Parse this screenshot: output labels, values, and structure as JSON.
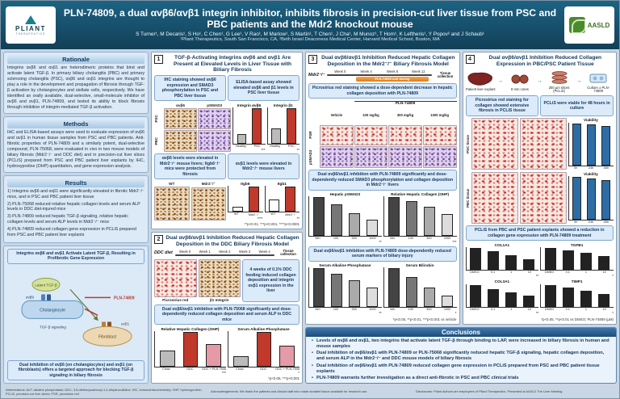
{
  "header": {
    "title": "PLN-74809, a dual αvβ6/αvβ1 integrin inhibitor, inhibits fibrosis in precision-cut liver tissue from PSC and PBC patients and the Mdr2 knockout mouse",
    "authors": "S Turner¹, M Decaris¹, S Ho¹, C Chen¹, G Lee¹, V Rao¹, M Marlow¹, S Martin¹, T Chen¹, J Cha¹, M Munoz¹, T Hom¹, K Leftheris¹, Y Popov² and J Schaub¹",
    "affiliations": "¹Pliant Therapeutics, South San Francisco, CA, ²Beth Israel Deaconess Medical Center, Harvard Medical School, Boston, MA",
    "pliant_logo": "PLIANT",
    "pliant_sub": "THERAPEUTICS",
    "aasld_logo": "AASLD"
  },
  "rationale": {
    "title": "Rationale",
    "body": "Integrins αvβ6 and αvβ1 are heterodimeric proteins that bind and activate latent TGF-β. In primary biliary cholangitis (PBC) and primary sclerosing cholangitis (PSC), αvβ6 and αvβ1 integrins are thought to play a role in the development and propagation of fibrosis through TGF-β activation by cholangiocytes and stellate cells, respectively. We have identified an orally available, dual-selective, small-molecule inhibitor of αvβ6 and αvβ1, PLN-74809, and tested its ability to block fibrosis through inhibition of integrin-mediated TGF-β activation."
  },
  "methods": {
    "title": "Methods",
    "body": "IHC and ELISA-based assays were used to evaluate expression of αvβ6 and αvβ1 in human tissue samples from PSC and PBC patients. Anti-fibrotic properties of PLN-74809 and a similarly potent, dual-selective compound, PLN-75068, were evaluated in vivo in two mouse models of biliary fibrosis (Mdr2⁻/⁻ and DDC diet) and in precision-cut liver slices (PCLiS) prepared from PSC and PBC patient liver explants by IHC, hydroxyproline (OHP) quantitation, and gene expression analysis."
  },
  "results": {
    "title": "Results",
    "items": [
      "1) Integrins αvβ6 and αvβ1 were significantly elevated in fibrotic Mdr2⁻/⁻ mice, and in PSC and PBC patient liver tissue",
      "2) PLN-75068 reduced relative hepatic collagen levels and serum ALP levels in DDC diet-injured mice",
      "3) PLN-74809 reduced hepatic TGF-β signaling, relative hepatic collagen levels and serum ALP levels in Mdr2⁻/⁻ mice",
      "4) PLN-74809 reduced collagen gene expression in PCLiS prepared from PSC and PBC patient liver explants"
    ]
  },
  "diagram": {
    "title": "Integrins αvβ6 and αvβ1 Activate Latent TGF-β, Resulting in Profibrotic Gene Expression",
    "caption": "Dual inhibition of αvβ6 (on cholangiocytes) and αvβ1 (on fibroblasts) offers a targeted approach for blocking TGF-β signaling in biliary fibrosis",
    "labels": {
      "latent": "Latent TGF-β",
      "b6": "αvβ6",
      "chol": "Cholangiocyte",
      "b1": "αvβ1",
      "fib": "Fibroblast",
      "drug": "PLN-74809",
      "signal": "TGF-β signaling"
    }
  },
  "panel1": {
    "num": "1",
    "title": "TGF-β-Activating Integrins αvβ6 and αvβ1 Are Present at Elevated Levels in Liver Tissue with Biliary Fibrosis",
    "box_ihc": "IHC staining showed αvβ6 expression and SMAD3 phosphorylation in PSC and PBC liver tissue",
    "box_elisa": "ELISA-based assay showed elevated αvβ6 and β1 levels in PSC liver tissue",
    "ihc_cols": [
      "αvβ6",
      "pSMAD3"
    ],
    "ihc_rows": [
      "PSC",
      "PBC"
    ],
    "chart_b6": {
      "title": "Integrin αvβ6",
      "categories": [
        "Healthy",
        "PSC"
      ],
      "values": [
        1,
        3.8
      ],
      "colors": [
        "#bbbbbb",
        "#c0392b"
      ],
      "sig": "***"
    },
    "chart_b1": {
      "title": "Integrin β1",
      "categories": [
        "Healthy",
        "PSC"
      ],
      "values": [
        1,
        2.3
      ],
      "colors": [
        "#bbbbbb",
        "#c0392b"
      ],
      "sig": "**"
    },
    "box_mouse_b6": "αvβ6 levels were elevated in Mdr2⁻/⁻ mouse livers; Itgb6⁻/⁻ mice were protected from fibrosis",
    "box_mouse_b1": "αvβ1 levels were elevated in Mdr2⁻/⁻ mouse livers",
    "mouse_labels": [
      "WT",
      "Mdr2⁻/⁻"
    ],
    "chart_itgb6": {
      "title": "Itgb6",
      "categories": [
        "WT",
        "Mdr2⁻/⁻"
      ],
      "values": [
        1,
        5.2
      ],
      "colors": [
        "#ffffff",
        "#c0392b"
      ],
      "sig": "****"
    },
    "chart_itgb1": {
      "title": "Itgb1",
      "categories": [
        "WT",
        "Mdr2⁻/⁻"
      ],
      "values": [
        1,
        2.1
      ],
      "colors": [
        "#ffffff",
        "#c0392b"
      ],
      "sig": "**"
    },
    "footnote": "**p<0.01, ***p<0.001, ****p<0.0001"
  },
  "panel2": {
    "num": "2",
    "title": "Dual αvβ6/αvβ1 Inhibition Reduced Hepatic Collagen Deposition in the DDC Biliary Fibrosis Model",
    "timeline_label": "DDC diet",
    "weeks": [
      "Week 0",
      "Week 1",
      "Week 2",
      "Week 3",
      "Week 4"
    ],
    "collection": "Tissue collection",
    "img_labels": [
      "Picrosirius red",
      "β1 Integrin"
    ],
    "box1": "4 weeks of 0.1% DDC feeding induced collagen deposition and integrin αvβ1 expression in the liver",
    "box2": "Dual αvβ6/αvβ1 inhibition with PLN-75068 significantly and dose-dependently reduced collagen deposition and serum ALP in DDC mice",
    "chart_ohp": {
      "title": "Relative Hepatic Collagen (OHP)",
      "categories": [
        "Chow",
        "DDC",
        "DDC + PLN-75068"
      ],
      "values": [
        1,
        2.2,
        1.4
      ],
      "colors": [
        "#bbbbbb",
        "#c0392b",
        "#e59aa8"
      ],
      "sig": "***"
    },
    "chart_alp": {
      "title": "Serum Alkaline Phosphatase",
      "categories": [
        "Chow",
        "DDC",
        "DDC + PLN-75068"
      ],
      "values": [
        120,
        420,
        250
      ],
      "colors": [
        "#bbbbbb",
        "#c0392b",
        "#e59aa8"
      ],
      "sig": "*"
    },
    "footnote": "*p<0.05, ***p<0.001"
  },
  "panel3": {
    "num": "3",
    "title": "Dual αvβ6/αvβ1 Inhibition Reduced Hepatic Collagen Deposition in the Mdr2⁻/⁻ Biliary Fibrosis Model",
    "timeline_label": "Mdr2⁻/⁻",
    "weeks": [
      "Week 0",
      "Week 4",
      "Week 8",
      "Week 12"
    ],
    "dosing_bar": "PLN-74809 oral dosing",
    "collection": "Tissue collection",
    "box1": "Picrosirius red staining showed a dose-dependent decrease in hepatic collagen deposition with PLN-74809",
    "group_header": "PLN-74809",
    "dose_labels": [
      "Vehicle",
      "100 mg/kg",
      "300 mg/kg",
      "1000 mg/kg"
    ],
    "row_labels": [
      "PSR",
      "pSMAD3"
    ],
    "box2": "Dual αvβ6/αvβ1 inhibition with PLN-74809 significantly and dose-dependently reduced SMAD3 phosphorylation and collagen deposition in Mdr2⁻/⁻ livers",
    "chart_psmad3": {
      "title": "Hepatic pSMAD3",
      "categories": [
        "Veh",
        "100",
        "300",
        "1000"
      ],
      "values": [
        1,
        0.82,
        0.6,
        0.42
      ],
      "colors": [
        "#444444",
        "#777777",
        "#aaaaaa",
        "#dddddd"
      ],
      "sig": "**"
    },
    "chart_ohp": {
      "title": "Relative Hepatic Collagen (OHP)",
      "categories": [
        "Veh",
        "100",
        "300",
        "1000"
      ],
      "values": [
        1,
        0.9,
        0.75,
        0.58
      ],
      "colors": [
        "#444444",
        "#777777",
        "#aaaaaa",
        "#dddddd"
      ],
      "sig": "***"
    },
    "box3": "Dual αvβ6/αvβ1 inhibition with PLN-74809 dose-dependently reduced serum markers of biliary injury",
    "chart_alp": {
      "title": "Serum Alkaline Phosphatase",
      "categories": [
        "Veh",
        "100",
        "300",
        "1000"
      ],
      "values": [
        420,
        360,
        290,
        210
      ],
      "colors": [
        "#444444",
        "#777777",
        "#aaaaaa",
        "#dddddd"
      ],
      "sig": "**"
    },
    "chart_bili": {
      "title": "Serum Bilirubin",
      "categories": [
        "Veh",
        "100",
        "300",
        "1000"
      ],
      "values": [
        8,
        6.2,
        4.1,
        2.3
      ],
      "colors": [
        "#444444",
        "#777777",
        "#aaaaaa",
        "#dddddd"
      ],
      "sig": "*"
    },
    "footnote": "*p<0.05, **p<0.01, ***p<0.001 vs vehicle"
  },
  "panel4": {
    "num": "4",
    "title": "Dual αvβ6/αvβ1 Inhibition Reduced Collagen Expression in PBC/PSC Patient Tissue",
    "workflow": [
      "Patient liver explant",
      "8 mm cores",
      "250 µm slices (PCLiS)",
      "Culture ± PLN-74809"
    ],
    "box1": "Picrosirius red staining for collagen showed extensive fibrosis in PCLiS tissue",
    "box2": "PCLiS were viable for 48 hours in culture",
    "tissue_rows": [
      "PSC tissue",
      "PBC tissue"
    ],
    "chart_viab_psc": {
      "title": "Viability",
      "categories": [
        "0h",
        "24h",
        "48h"
      ],
      "values": [
        100,
        97,
        94
      ],
      "colors": [
        "#2e6da4",
        "#2e6da4",
        "#2e6da4"
      ]
    },
    "chart_viab_pbc": {
      "title": "Viability",
      "categories": [
        "0h",
        "24h",
        "48h"
      ],
      "values": [
        100,
        96,
        92
      ],
      "colors": [
        "#2e6da4",
        "#2e6da4",
        "#2e6da4"
      ]
    },
    "box3": "PCLiS from PBC and PSC patient explants showed a reduction in collagen gene expression with PLN-74809 treatment",
    "gene_charts": [
      {
        "title": "COL1A1",
        "categories": [
          "DMSO",
          "0.1",
          "1",
          "10"
        ],
        "values": [
          1,
          0.85,
          0.66,
          0.48
        ],
        "colors": [
          "#222222",
          "#222222",
          "#222222",
          "#222222"
        ],
        "sig": "**"
      },
      {
        "title": "TGFB1",
        "categories": [
          "DMSO",
          "0.1",
          "1",
          "10"
        ],
        "values": [
          1,
          0.9,
          0.78,
          0.62
        ],
        "colors": [
          "#222222",
          "#222222",
          "#222222",
          "#222222"
        ],
        "sig": "*"
      },
      {
        "title": "COL3A1",
        "categories": [
          "DMSO",
          "0.1",
          "1",
          "10"
        ],
        "values": [
          1,
          0.8,
          0.64,
          0.5
        ],
        "colors": [
          "#222222",
          "#222222",
          "#222222",
          "#222222"
        ],
        "sig": "**"
      },
      {
        "title": "TIMP1",
        "categories": [
          "DMSO",
          "0.1",
          "1",
          "10"
        ],
        "values": [
          1,
          0.88,
          0.72,
          0.58
        ],
        "colors": [
          "#222222",
          "#222222",
          "#222222",
          "#222222"
        ],
        "sig": "*"
      }
    ],
    "footnote": "*p<0.05, **p<0.01 vs DMSO; PLN-74809 (µM)"
  },
  "conclusions": {
    "title": "Conclusions",
    "bullets": [
      "Levels of αvβ6 and αvβ1, two integrins that activate latent TGF-β through binding to LAP, were increased in biliary fibrosis in human and mouse samples",
      "Dual inhibition of αvβ6/αvβ1 with PLN-74809 or PLN-75068 significantly reduced hepatic TGF-β signaling, hepatic collagen deposition, and serum ALP in the Mdr2⁻/⁻ and DDC mouse models of biliary fibrosis",
      "Dual inhibition of αvβ6/αvβ1 with PLN-74809 reduced collagen gene expression in PCLiS prepared from PSC and PBC patient tissue explants",
      "PLN-74809 warrants further investigation as a direct anti-fibrotic in PSC and PBC clinical trials"
    ]
  },
  "footer": {
    "left": "Abbreviations: ALP, alkaline phosphatase; DDC, 3,5-diethoxycarbonyl-1,4-dihydrocollidine; IHC, immunohistochemistry; OHP, hydroxyproline; PCLiS, precision-cut liver slices; PSR, picrosirius red",
    "mid": "Acknowledgements: We thank the patients and clinical staff who made donated tissue available for research use.",
    "right": "Disclosures: Pliant authors are employees of Pliant Therapeutics. Presented at AASLD The Liver Meeting."
  }
}
